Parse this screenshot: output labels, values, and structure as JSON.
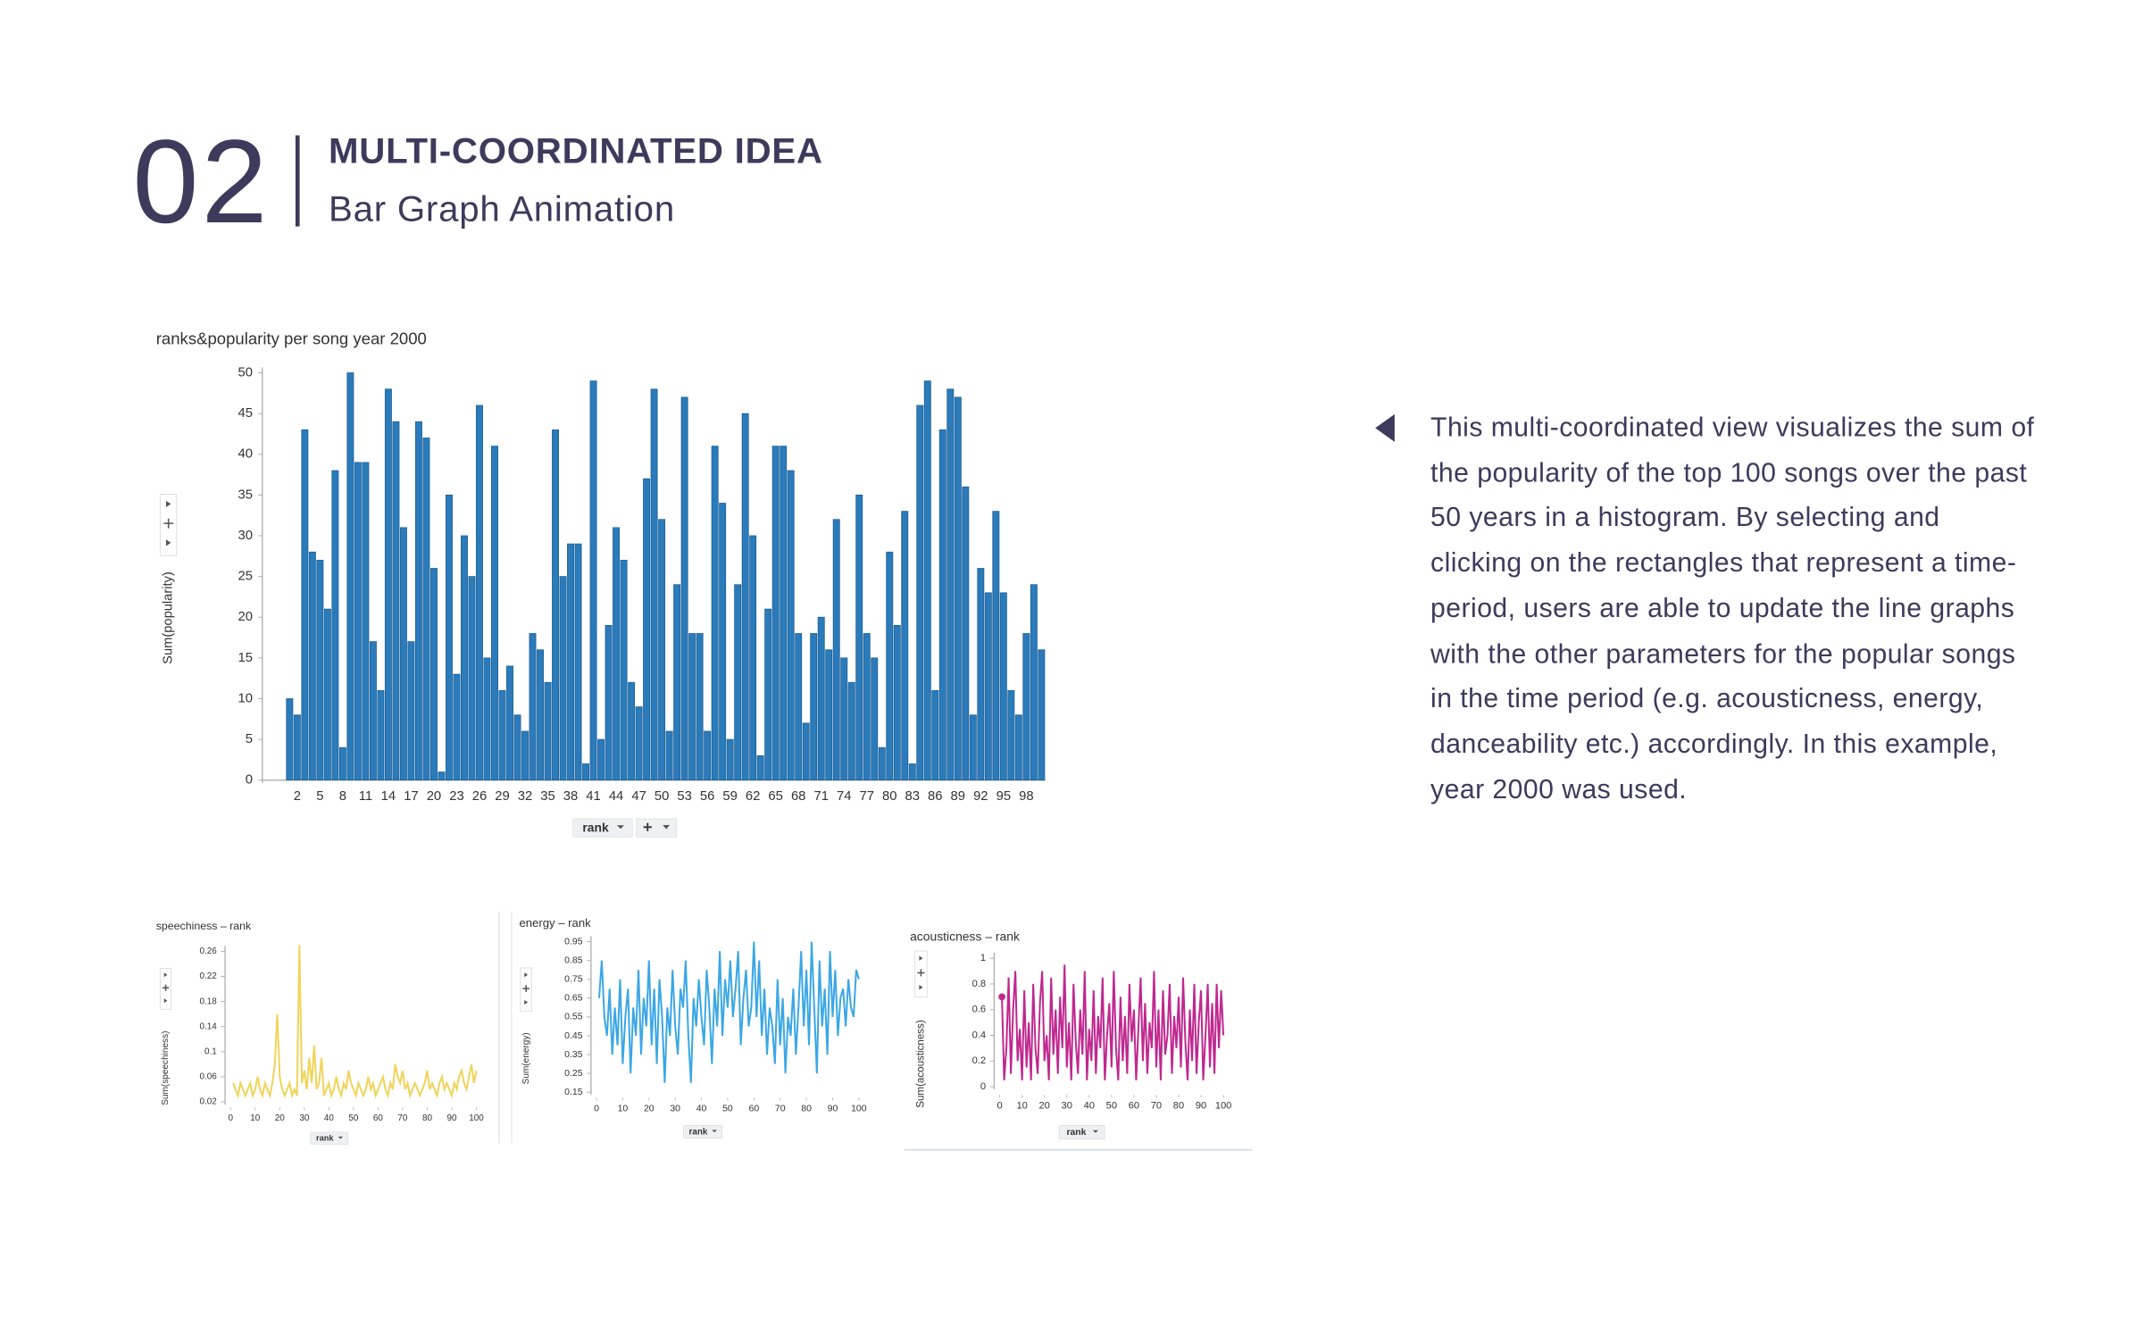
{
  "header": {
    "number": "02",
    "title": "MULTI-COORDINATED IDEA",
    "subtitle": "Bar Graph Animation"
  },
  "description": "This multi-coordinated view visualizes the sum of the popularity of the top 100 songs over the past 50 years in a histogram. By selecting and clicking on the rectangles that represent a time-period, users are able to update the line graphs with the other parameters for the popular songs in the time period (e.g. acousticness, energy, danceability etc.) accordingly. In this example, year 2000 was used.",
  "chart_data": [
    {
      "type": "bar",
      "title": "ranks&popularity per song year 2000",
      "y_label": "Sum(popularity)",
      "x_label": "rank",
      "color": "#2b7bba",
      "categories": [
        null,
        2,
        null,
        null,
        5,
        null,
        null,
        8,
        null,
        null,
        11,
        null,
        null,
        14,
        null,
        null,
        17,
        null,
        null,
        20,
        null,
        null,
        23,
        null,
        null,
        26,
        null,
        null,
        29,
        null,
        null,
        32,
        null,
        null,
        35,
        null,
        null,
        38,
        null,
        null,
        41,
        null,
        null,
        44,
        null,
        null,
        47,
        null,
        null,
        50,
        null,
        null,
        53,
        null,
        null,
        56,
        null,
        null,
        59,
        null,
        null,
        62,
        null,
        null,
        65,
        null,
        null,
        68,
        null,
        null,
        71,
        null,
        null,
        74,
        null,
        null,
        77,
        null,
        null,
        80,
        null,
        null,
        83,
        null,
        null,
        86,
        null,
        null,
        89,
        null,
        null,
        92,
        null,
        null,
        95,
        null,
        null,
        98,
        null,
        null
      ],
      "values": [
        10,
        8,
        43,
        28,
        27,
        21,
        38,
        4,
        50,
        39,
        39,
        17,
        11,
        48,
        44,
        31,
        17,
        44,
        42,
        26,
        1,
        35,
        13,
        30,
        25,
        46,
        15,
        41,
        11,
        14,
        8,
        6,
        18,
        16,
        12,
        43,
        25,
        29,
        29,
        2,
        49,
        5,
        19,
        31,
        27,
        12,
        9,
        37,
        48,
        32,
        6,
        24,
        47,
        18,
        18,
        6,
        41,
        34,
        5,
        24,
        45,
        30,
        3,
        21,
        41,
        41,
        38,
        18,
        7,
        18,
        20,
        16,
        32,
        15,
        12,
        35,
        18,
        15,
        4,
        28,
        19,
        33,
        2,
        46,
        49,
        11,
        43,
        48,
        47,
        36,
        8,
        26,
        23,
        33,
        23,
        11,
        8,
        18,
        24,
        16
      ],
      "ylim": [
        0,
        50
      ],
      "yticks": [
        0,
        5,
        10,
        15,
        20,
        25,
        30,
        35,
        40,
        45,
        50
      ]
    },
    {
      "type": "line",
      "title": "speechiness – rank",
      "y_label": "Sum(speechiness)",
      "x_label": "rank",
      "color": "#f0d45a",
      "x": [
        1,
        2,
        3,
        4,
        5,
        6,
        7,
        8,
        9,
        10,
        11,
        12,
        13,
        14,
        15,
        16,
        17,
        18,
        19,
        20,
        21,
        22,
        23,
        24,
        25,
        26,
        27,
        28,
        29,
        30,
        31,
        32,
        33,
        34,
        35,
        36,
        37,
        38,
        39,
        40,
        41,
        42,
        43,
        44,
        45,
        46,
        47,
        48,
        49,
        50,
        51,
        52,
        53,
        54,
        55,
        56,
        57,
        58,
        59,
        60,
        61,
        62,
        63,
        64,
        65,
        66,
        67,
        68,
        69,
        70,
        71,
        72,
        73,
        74,
        75,
        76,
        77,
        78,
        79,
        80,
        81,
        82,
        83,
        84,
        85,
        86,
        87,
        88,
        89,
        90,
        91,
        92,
        93,
        94,
        95,
        96,
        97,
        98,
        99,
        100
      ],
      "values": [
        0.05,
        0.04,
        0.03,
        0.05,
        0.04,
        0.03,
        0.04,
        0.05,
        0.03,
        0.04,
        0.06,
        0.04,
        0.03,
        0.05,
        0.04,
        0.03,
        0.05,
        0.08,
        0.16,
        0.06,
        0.04,
        0.03,
        0.04,
        0.05,
        0.03,
        0.04,
        0.03,
        0.27,
        0.05,
        0.07,
        0.04,
        0.09,
        0.05,
        0.11,
        0.04,
        0.05,
        0.09,
        0.03,
        0.04,
        0.05,
        0.03,
        0.04,
        0.06,
        0.04,
        0.03,
        0.05,
        0.04,
        0.07,
        0.05,
        0.04,
        0.03,
        0.05,
        0.04,
        0.03,
        0.04,
        0.06,
        0.04,
        0.05,
        0.03,
        0.04,
        0.05,
        0.06,
        0.04,
        0.03,
        0.05,
        0.04,
        0.08,
        0.06,
        0.05,
        0.07,
        0.04,
        0.05,
        0.03,
        0.04,
        0.05,
        0.04,
        0.03,
        0.04,
        0.05,
        0.07,
        0.04,
        0.05,
        0.04,
        0.03,
        0.05,
        0.06,
        0.04,
        0.05,
        0.04,
        0.03,
        0.05,
        0.04,
        0.06,
        0.07,
        0.05,
        0.04,
        0.06,
        0.08,
        0.05,
        0.07
      ],
      "xlim": [
        0,
        100
      ],
      "xticks": [
        0,
        10,
        20,
        30,
        40,
        50,
        60,
        70,
        80,
        90,
        100
      ],
      "ylim": [
        0.02,
        0.26
      ],
      "yticks": [
        0.02,
        0.06,
        0.1,
        0.14,
        0.18,
        0.22,
        0.26
      ]
    },
    {
      "type": "line",
      "title": "energy – rank",
      "y_label": "Sum(energy)",
      "x_label": "rank",
      "color": "#3ba7e5",
      "x": [
        1,
        2,
        3,
        4,
        5,
        6,
        7,
        8,
        9,
        10,
        11,
        12,
        13,
        14,
        15,
        16,
        17,
        18,
        19,
        20,
        21,
        22,
        23,
        24,
        25,
        26,
        27,
        28,
        29,
        30,
        31,
        32,
        33,
        34,
        35,
        36,
        37,
        38,
        39,
        40,
        41,
        42,
        43,
        44,
        45,
        46,
        47,
        48,
        49,
        50,
        51,
        52,
        53,
        54,
        55,
        56,
        57,
        58,
        59,
        60,
        61,
        62,
        63,
        64,
        65,
        66,
        67,
        68,
        69,
        70,
        71,
        72,
        73,
        74,
        75,
        76,
        77,
        78,
        79,
        80,
        81,
        82,
        83,
        84,
        85,
        86,
        87,
        88,
        89,
        90,
        91,
        92,
        93,
        94,
        95,
        96,
        97,
        98,
        99,
        100
      ],
      "values": [
        0.65,
        0.85,
        0.55,
        0.45,
        0.7,
        0.35,
        0.6,
        0.4,
        0.75,
        0.3,
        0.55,
        0.7,
        0.25,
        0.6,
        0.45,
        0.8,
        0.35,
        0.65,
        0.5,
        0.85,
        0.4,
        0.7,
        0.3,
        0.75,
        0.55,
        0.2,
        0.6,
        0.45,
        0.8,
        0.5,
        0.35,
        0.7,
        0.6,
        0.85,
        0.45,
        0.2,
        0.65,
        0.5,
        0.75,
        0.55,
        0.4,
        0.8,
        0.6,
        0.3,
        0.7,
        0.5,
        0.9,
        0.45,
        0.75,
        0.6,
        0.85,
        0.55,
        0.7,
        0.9,
        0.4,
        0.65,
        0.8,
        0.5,
        0.6,
        0.95,
        0.55,
        0.85,
        0.45,
        0.7,
        0.35,
        0.6,
        0.5,
        0.3,
        0.75,
        0.4,
        0.65,
        0.25,
        0.55,
        0.45,
        0.7,
        0.35,
        0.6,
        0.9,
        0.5,
        0.8,
        0.4,
        0.95,
        0.6,
        0.25,
        0.85,
        0.5,
        0.7,
        0.35,
        0.9,
        0.55,
        0.8,
        0.45,
        0.65,
        0.7,
        0.5,
        0.75,
        0.6,
        0.55,
        0.8,
        0.75
      ],
      "xlim": [
        0,
        100
      ],
      "xticks": [
        0,
        10,
        20,
        30,
        40,
        50,
        60,
        70,
        80,
        90,
        100
      ],
      "ylim": [
        0.15,
        0.95
      ],
      "yticks": [
        0.15,
        0.25,
        0.35,
        0.45,
        0.55,
        0.65,
        0.75,
        0.85,
        0.95
      ]
    },
    {
      "type": "line",
      "title": "acousticness – rank",
      "y_label": "Sum(acousticness)",
      "x_label": "rank",
      "color": "#c0288f",
      "x": [
        1,
        2,
        3,
        4,
        5,
        6,
        7,
        8,
        9,
        10,
        11,
        12,
        13,
        14,
        15,
        16,
        17,
        18,
        19,
        20,
        21,
        22,
        23,
        24,
        25,
        26,
        27,
        28,
        29,
        30,
        31,
        32,
        33,
        34,
        35,
        36,
        37,
        38,
        39,
        40,
        41,
        42,
        43,
        44,
        45,
        46,
        47,
        48,
        49,
        50,
        51,
        52,
        53,
        54,
        55,
        56,
        57,
        58,
        59,
        60,
        61,
        62,
        63,
        64,
        65,
        66,
        67,
        68,
        69,
        70,
        71,
        72,
        73,
        74,
        75,
        76,
        77,
        78,
        79,
        80,
        81,
        82,
        83,
        84,
        85,
        86,
        87,
        88,
        89,
        90,
        91,
        92,
        93,
        94,
        95,
        96,
        97,
        98,
        99,
        100
      ],
      "values": [
        0.7,
        0.05,
        0.3,
        0.85,
        0.1,
        0.6,
        0.9,
        0.2,
        0.45,
        0.05,
        0.75,
        0.15,
        0.5,
        0.05,
        0.8,
        0.3,
        0.1,
        0.65,
        0.9,
        0.2,
        0.4,
        0.05,
        0.85,
        0.25,
        0.6,
        0.1,
        0.7,
        0.3,
        0.95,
        0.15,
        0.5,
        0.05,
        0.8,
        0.35,
        0.1,
        0.6,
        0.25,
        0.9,
        0.05,
        0.45,
        0.2,
        0.75,
        0.1,
        0.55,
        0.3,
        0.85,
        0.05,
        0.4,
        0.65,
        0.15,
        0.9,
        0.3,
        0.05,
        0.7,
        0.2,
        0.55,
        0.1,
        0.8,
        0.35,
        0.6,
        0.05,
        0.45,
        0.85,
        0.2,
        0.65,
        0.1,
        0.5,
        0.3,
        0.9,
        0.15,
        0.6,
        0.05,
        0.75,
        0.25,
        0.4,
        0.8,
        0.1,
        0.55,
        0.3,
        0.7,
        0.15,
        0.85,
        0.35,
        0.05,
        0.6,
        0.2,
        0.8,
        0.1,
        0.5,
        0.75,
        0.05,
        0.4,
        0.8,
        0.15,
        0.65,
        0.1,
        0.8,
        0.3,
        0.75,
        0.4
      ],
      "xlim": [
        0,
        100
      ],
      "xticks": [
        0,
        10,
        20,
        30,
        40,
        50,
        60,
        70,
        80,
        90,
        100
      ],
      "ylim": [
        0,
        1
      ],
      "yticks": [
        0,
        0.2,
        0.4,
        0.6,
        0.8,
        1
      ]
    }
  ]
}
